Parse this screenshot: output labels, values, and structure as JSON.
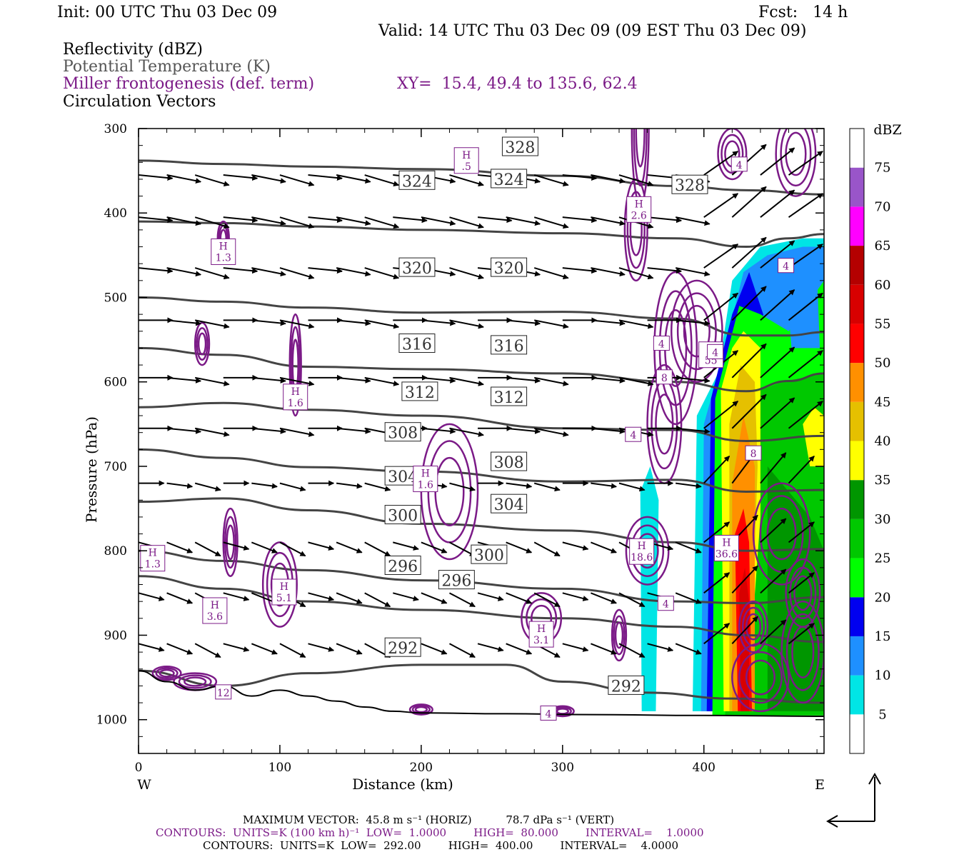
{
  "header": {
    "init": "Init: 00 UTC Thu 03 Dec 09",
    "fcst": "Fcst:   14 h",
    "valid": "Valid: 14 UTC Thu 03 Dec 09 (09 EST Thu 03 Dec 09)",
    "field1": "Reflectivity (dBZ)",
    "field2": "Potential Temperature (K)",
    "field3": "Miller frontogenesis (def. term)",
    "xy": "XY=  15.4, 49.4 to 135.6, 62.4",
    "field4": "Circulation Vectors"
  },
  "footer": {
    "line1": "MAXIMUM VECTOR:  45.8 m s⁻¹ (HORIZ)          78.7 dPa s⁻¹ (VERT)",
    "line2": "CONTOURS:  UNITS=K (100 km h)⁻¹  LOW=  1.0000        HIGH=  80.000        INTERVAL=    1.0000",
    "line3": "CONTOURS:  UNITS=K  LOW=  292.00        HIGH=  400.00        INTERVAL=    4.0000"
  },
  "colors": {
    "theta": "#444444",
    "front": "#7b1a87",
    "axis": "#000000"
  },
  "chart_data": {
    "type": "cross-section",
    "xlabel": "Distance (km)",
    "ylabel": "Pressure (hPa)",
    "xlim": [
      0,
      485
    ],
    "ylim": [
      1040,
      300
    ],
    "x_ticks": [
      0,
      100,
      200,
      300,
      400
    ],
    "y_ticks": [
      300,
      400,
      500,
      600,
      700,
      800,
      900,
      1000
    ],
    "x_end_labels": {
      "left": "W",
      "right": "E"
    },
    "colorbar": {
      "title": "dBZ",
      "levels": [
        5,
        10,
        15,
        20,
        25,
        30,
        35,
        40,
        45,
        50,
        55,
        60,
        65,
        70,
        75
      ],
      "colors": [
        "#ffffff",
        "#00e5e5",
        "#1e90ff",
        "#0000f0",
        "#00ff00",
        "#00c800",
        "#009600",
        "#ffff00",
        "#e5c000",
        "#ff9000",
        "#ff0000",
        "#d80000",
        "#b40000",
        "#ff00ff",
        "#9955c9",
        "#ffffff"
      ]
    },
    "theta_contours": [
      {
        "value": 328,
        "points": [
          [
            0,
            338
          ],
          [
            60,
            342
          ],
          [
            120,
            345
          ],
          [
            200,
            348
          ],
          [
            300,
            356
          ],
          [
            380,
            368
          ],
          [
            430,
            373
          ],
          [
            485,
            378
          ]
        ],
        "labels": [
          [
            270,
            322
          ],
          [
            390,
            367
          ]
        ]
      },
      {
        "value": 324,
        "points": [
          [
            0,
            410
          ],
          [
            60,
            412
          ],
          [
            120,
            416
          ],
          [
            200,
            420
          ],
          [
            300,
            424
          ],
          [
            380,
            430
          ],
          [
            430,
            440
          ],
          [
            460,
            430
          ],
          [
            485,
            425
          ]
        ],
        "labels": [
          [
            197,
            362
          ],
          [
            262,
            360
          ]
        ]
      },
      {
        "value": 320,
        "points": [
          [
            0,
            500
          ],
          [
            60,
            505
          ],
          [
            120,
            512
          ],
          [
            200,
            518
          ],
          [
            300,
            517
          ],
          [
            380,
            525
          ],
          [
            430,
            545
          ],
          [
            460,
            545
          ],
          [
            485,
            541
          ]
        ],
        "labels": [
          [
            197,
            465
          ],
          [
            262,
            465
          ]
        ]
      },
      {
        "value": 316,
        "points": [
          [
            0,
            560
          ],
          [
            60,
            568
          ],
          [
            120,
            582
          ],
          [
            200,
            585
          ],
          [
            300,
            590
          ],
          [
            380,
            600
          ],
          [
            430,
            611
          ],
          [
            460,
            599
          ],
          [
            485,
            590
          ]
        ],
        "labels": [
          [
            197,
            555
          ],
          [
            262,
            557
          ]
        ]
      },
      {
        "value": 312,
        "points": [
          [
            0,
            630
          ],
          [
            60,
            625
          ],
          [
            120,
            633
          ],
          [
            200,
            640
          ],
          [
            300,
            655
          ],
          [
            380,
            657
          ],
          [
            430,
            670
          ],
          [
            485,
            664
          ]
        ],
        "labels": [
          [
            199,
            612
          ],
          [
            262,
            618
          ]
        ]
      },
      {
        "value": 308,
        "points": [
          [
            0,
            680
          ],
          [
            60,
            690
          ],
          [
            120,
            701
          ],
          [
            200,
            706
          ],
          [
            300,
            718
          ],
          [
            380,
            716
          ],
          [
            430,
            730
          ],
          [
            485,
            728
          ]
        ],
        "labels": [
          [
            187,
            660
          ],
          [
            262,
            695
          ]
        ]
      },
      {
        "value": 304,
        "points": [
          [
            0,
            742
          ],
          [
            60,
            738
          ],
          [
            120,
            752
          ],
          [
            200,
            768
          ],
          [
            300,
            776
          ],
          [
            380,
            790
          ],
          [
            430,
            800
          ],
          [
            485,
            798
          ]
        ],
        "labels": [
          [
            187,
            712
          ],
          [
            262,
            745
          ]
        ]
      },
      {
        "value": 300,
        "points": [
          [
            0,
            800
          ],
          [
            60,
            812
          ],
          [
            120,
            823
          ],
          [
            200,
            835
          ],
          [
            300,
            845
          ],
          [
            380,
            860
          ],
          [
            430,
            862
          ],
          [
            485,
            855
          ]
        ],
        "labels": [
          [
            187,
            758
          ],
          [
            248,
            805
          ]
        ]
      },
      {
        "value": 296,
        "points": [
          [
            0,
            830
          ],
          [
            60,
            845
          ],
          [
            120,
            860
          ],
          [
            200,
            870
          ],
          [
            300,
            880
          ],
          [
            380,
            890
          ],
          [
            430,
            900
          ],
          [
            485,
            908
          ]
        ],
        "labels": [
          [
            187,
            818
          ],
          [
            225,
            835
          ]
        ]
      },
      {
        "value": 292,
        "points": [
          [
            0,
            942
          ],
          [
            60,
            960
          ],
          [
            120,
            945
          ],
          [
            200,
            935
          ],
          [
            260,
            935
          ],
          [
            300,
            955
          ],
          [
            360,
            968
          ],
          [
            420,
            975
          ],
          [
            485,
            980
          ]
        ],
        "labels": [
          [
            187,
            915
          ],
          [
            345,
            960
          ]
        ]
      }
    ],
    "frontogenesis_highs": [
      {
        "x": 232,
        "p": 337,
        "value": "H .5"
      },
      {
        "x": 354,
        "p": 395,
        "value": "H 2.6"
      },
      {
        "x": 60,
        "p": 445,
        "value": "H 1.3"
      },
      {
        "x": 405,
        "p": 567,
        "value": "H 55"
      },
      {
        "x": 111,
        "p": 617,
        "value": "H 1.6"
      },
      {
        "x": 203,
        "p": 714,
        "value": "H 1.6"
      },
      {
        "x": 10,
        "p": 808,
        "value": "H 1.3"
      },
      {
        "x": 356,
        "p": 800,
        "value": "H 18.6"
      },
      {
        "x": 416,
        "p": 796,
        "value": "H 36.6"
      },
      {
        "x": 103,
        "p": 848,
        "value": "H 5.1"
      },
      {
        "x": 54,
        "p": 870,
        "value": "H 3.6"
      },
      {
        "x": 285,
        "p": 898,
        "value": "H 3.1"
      }
    ],
    "frontogenesis_labels": [
      {
        "x": 425,
        "p": 343,
        "value": "4"
      },
      {
        "x": 458,
        "p": 463,
        "value": "4"
      },
      {
        "x": 408,
        "p": 565,
        "value": "4"
      },
      {
        "x": 370,
        "p": 555,
        "value": "4"
      },
      {
        "x": 372,
        "p": 595,
        "value": "8"
      },
      {
        "x": 350,
        "p": 663,
        "value": "4"
      },
      {
        "x": 435,
        "p": 685,
        "value": "8"
      },
      {
        "x": 373,
        "p": 863,
        "value": "4"
      },
      {
        "x": 60,
        "p": 968,
        "value": "12"
      },
      {
        "x": 290,
        "p": 993,
        "value": "4"
      }
    ]
  }
}
